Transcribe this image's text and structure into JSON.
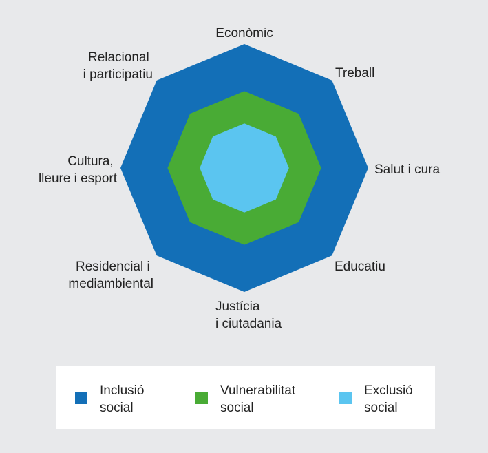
{
  "diagram": {
    "axes": [
      [
        "Econòmic"
      ],
      [
        "Treball"
      ],
      [
        "Salut i cura"
      ],
      [
        "Educatiu"
      ],
      [
        "Justícia",
        "i ciutadania"
      ],
      [
        "Residencial i",
        "mediambiental"
      ],
      [
        "Cultura,",
        "lleure i esport"
      ],
      [
        "Relacional",
        "i participatiu"
      ]
    ],
    "layers": [
      {
        "key": "inclusio",
        "color": "#136FB7",
        "level": 1.0
      },
      {
        "key": "vulnerabilitat",
        "color": "#49AB35",
        "level": 0.62
      },
      {
        "key": "exclusio",
        "color": "#5BC5F0",
        "level": 0.36
      }
    ]
  },
  "legend": {
    "items": [
      {
        "line1": "Inclusió",
        "line2": "social",
        "color": "#136FB7"
      },
      {
        "line1": "Vulnerabilitat",
        "line2": "social",
        "color": "#49AB35"
      },
      {
        "line1": "Exclusió",
        "line2": "social",
        "color": "#5BC5F0"
      }
    ]
  }
}
